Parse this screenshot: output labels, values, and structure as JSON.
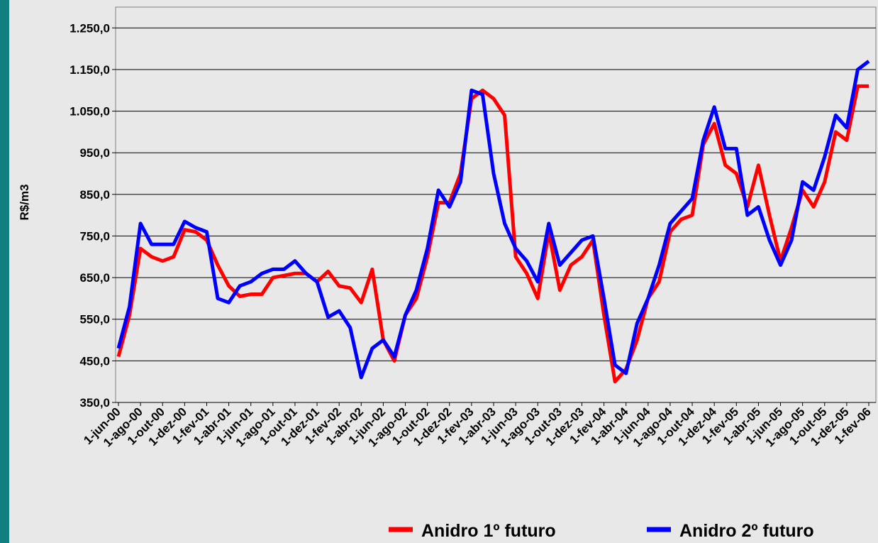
{
  "chart_data": {
    "type": "line",
    "y_label": "R$/m3",
    "categories": [
      "1-jun-00",
      null,
      "1-ago-00",
      null,
      "1-out-00",
      null,
      "1-dez-00",
      null,
      "1-fev-01",
      null,
      "1-abr-01",
      null,
      "1-jun-01",
      null,
      "1-ago-01",
      null,
      "1-out-01",
      null,
      "1-dez-01",
      null,
      "1-fev-02",
      null,
      "1-abr-02",
      null,
      "1-jun-02",
      null,
      "1-ago-02",
      null,
      "1-out-02",
      null,
      "1-dez-02",
      null,
      "1-fev-03",
      null,
      "1-abr-03",
      null,
      "1-jun-03",
      null,
      "1-ago-03",
      null,
      "1-out-03",
      null,
      "1-dez-03",
      null,
      "1-fev-04",
      null,
      "1-abr-04",
      null,
      "1-jun-04",
      null,
      "1-ago-04",
      null,
      "1-out-04",
      null,
      "1-dez-04",
      null,
      "1-fev-05",
      null,
      "1-abr-05",
      null,
      "1-jun-05",
      null,
      "1-ago-05",
      null,
      "1-out-05",
      null,
      "1-dez-05",
      null,
      "1-fev-06"
    ],
    "series": [
      {
        "name": "Anidro 1º futuro",
        "color": "#ff0000",
        "values": [
          460,
          560,
          720,
          700,
          690,
          700,
          765,
          760,
          740,
          680,
          630,
          605,
          610,
          610,
          650,
          655,
          660,
          660,
          640,
          665,
          630,
          625,
          590,
          670,
          500,
          450,
          560,
          600,
          700,
          830,
          830,
          900,
          1080,
          1100,
          1080,
          1040,
          700,
          660,
          600,
          760,
          620,
          680,
          700,
          740,
          560,
          400,
          430,
          500,
          600,
          640,
          760,
          790,
          800,
          970,
          1020,
          920,
          900,
          820,
          920,
          800,
          690,
          770,
          860,
          820,
          880,
          1000,
          980,
          1110,
          1110
        ]
      },
      {
        "name": "Anidro 2º futuro",
        "color": "#0000ff",
        "values": [
          480,
          580,
          780,
          730,
          730,
          730,
          785,
          770,
          760,
          600,
          590,
          630,
          640,
          660,
          670,
          670,
          690,
          660,
          640,
          555,
          570,
          530,
          410,
          480,
          500,
          460,
          560,
          620,
          720,
          860,
          820,
          880,
          1100,
          1090,
          900,
          780,
          720,
          690,
          640,
          780,
          680,
          710,
          740,
          750,
          600,
          440,
          420,
          540,
          600,
          680,
          780,
          810,
          840,
          980,
          1060,
          960,
          960,
          800,
          820,
          740,
          680,
          740,
          880,
          860,
          940,
          1040,
          1010,
          1150,
          1170
        ]
      }
    ],
    "ylim": [
      350,
      1300
    ],
    "yticks": [
      {
        "value": 350,
        "label": "350,0"
      },
      {
        "value": 450,
        "label": "450,0"
      },
      {
        "value": 550,
        "label": "550,0"
      },
      {
        "value": 650,
        "label": "650,0"
      },
      {
        "value": 750,
        "label": "750,0"
      },
      {
        "value": 850,
        "label": "850,0"
      },
      {
        "value": 950,
        "label": "950,0"
      },
      {
        "value": 1050,
        "label": "1.050,0"
      },
      {
        "value": 1150,
        "label": "1.150,0"
      },
      {
        "value": 1250,
        "label": "1.250,0"
      }
    ],
    "grid": true
  }
}
